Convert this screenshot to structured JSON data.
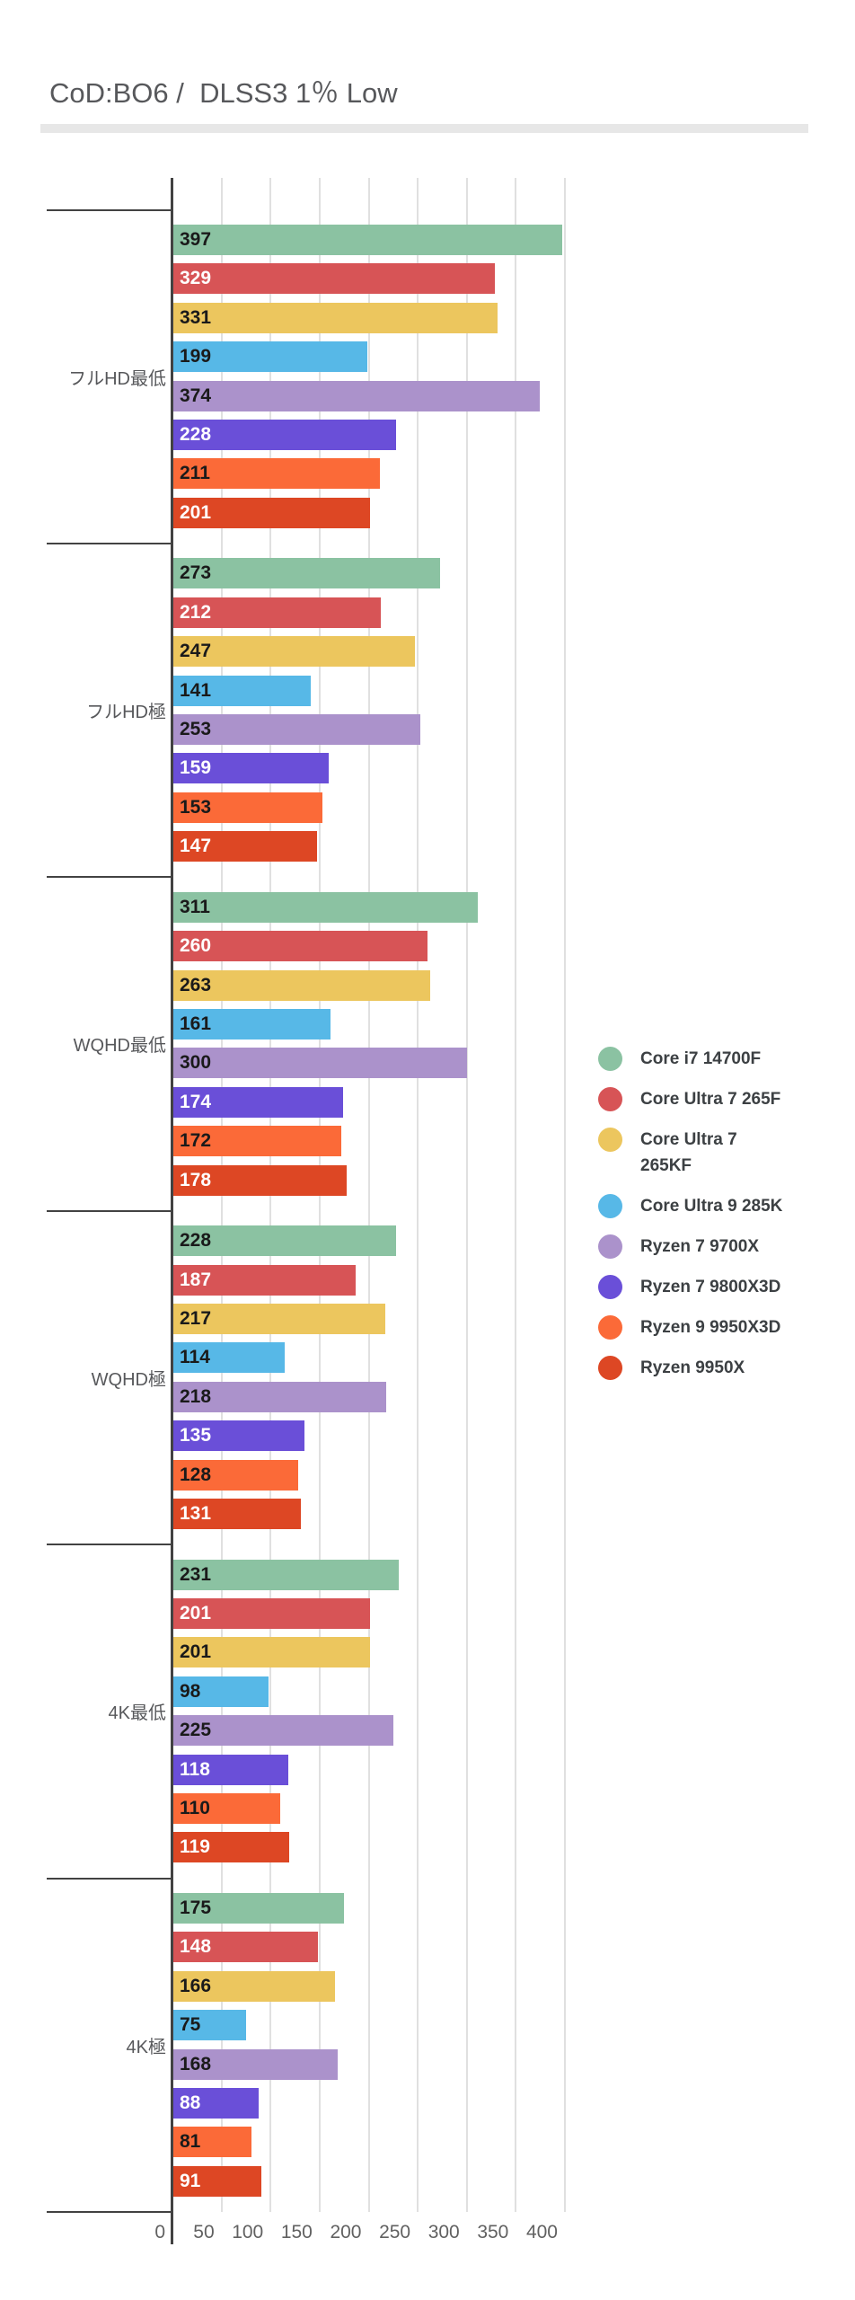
{
  "title": "CoD:BO6 /  DLSS3 1％ Low",
  "chart_data": {
    "type": "bar",
    "orientation": "horizontal",
    "title": "CoD:BO6 /  DLSS3 1％ Low",
    "xlabel": "",
    "ylabel": "",
    "grid": true,
    "legend_position": "right",
    "axis_max": 400,
    "x_axis": {
      "ticks": [
        0,
        50,
        100,
        150,
        200,
        250,
        300,
        350,
        400
      ]
    },
    "categories": [
      "フルHD最低",
      "フルHD極",
      "WQHD最低",
      "WQHD極",
      "4K最低",
      "4K極"
    ],
    "series": [
      {
        "name": "Core i7 14700F",
        "legend_label": "Core i7 14700F",
        "color": "#8bc2a2",
        "value_text_color": "#1a1a1a",
        "values": [
          397,
          273,
          311,
          228,
          231,
          175
        ]
      },
      {
        "name": "Core Ultra 7 265F",
        "legend_label": "Core Ultra 7 265F",
        "color": "#d75456",
        "value_text_color": "#ffffff",
        "values": [
          329,
          212,
          260,
          187,
          201,
          148
        ]
      },
      {
        "name": "Core Ultra 7 265KF",
        "legend_label": "Core Ultra 7\n265KF",
        "color": "#ecc65e",
        "value_text_color": "#1a1a1a",
        "values": [
          331,
          247,
          263,
          217,
          201,
          166
        ]
      },
      {
        "name": "Core Ultra 9 285K",
        "legend_label": "Core Ultra 9 285K",
        "color": "#57b8e7",
        "value_text_color": "#1a1a1a",
        "values": [
          199,
          141,
          161,
          114,
          98,
          75
        ]
      },
      {
        "name": "Ryzen 7 9700X",
        "legend_label": "Ryzen 7 9700X",
        "color": "#ab92cb",
        "value_text_color": "#1a1a1a",
        "values": [
          374,
          253,
          300,
          218,
          225,
          168
        ]
      },
      {
        "name": "Ryzen 7 9800X3D",
        "legend_label": "Ryzen 7 9800X3D",
        "color": "#6a4fd8",
        "value_text_color": "#ffffff",
        "values": [
          228,
          159,
          174,
          135,
          118,
          88
        ]
      },
      {
        "name": "Ryzen 9 9950X3D",
        "legend_label": "Ryzen 9 9950X3D",
        "color": "#fb6a38",
        "value_text_color": "#1a1a1a",
        "values": [
          211,
          153,
          172,
          128,
          110,
          81
        ]
      },
      {
        "name": "Ryzen 9950X",
        "legend_label": "Ryzen 9950X",
        "color": "#dd4724",
        "value_text_color": "#ffffff",
        "values": [
          201,
          147,
          178,
          131,
          119,
          91
        ]
      }
    ]
  },
  "style": {
    "grid_color": "#e0e0e0",
    "axis_color": "#424242",
    "tick_label_color": "#616161",
    "category_label_color": "#57585b",
    "title_color": "#57585b",
    "legend_text_color": "#3c4043"
  }
}
